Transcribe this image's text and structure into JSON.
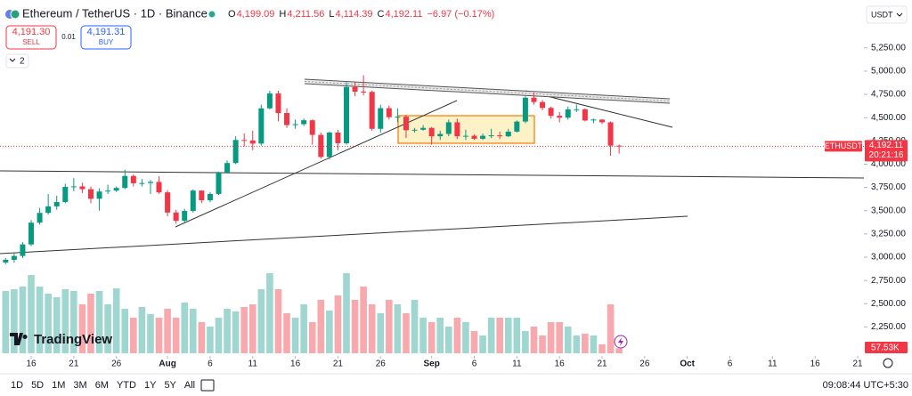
{
  "chart_data": {
    "type": "candlestick",
    "title": "Ethereum / TetherUS · 1D · Binance",
    "open": [
      2943,
      2972,
      3013,
      3137,
      3371,
      3476,
      3546,
      3593,
      3756,
      3761,
      3731,
      3628,
      3706,
      3716,
      3744,
      3873,
      3795,
      3797,
      3809,
      3697,
      3480,
      3391,
      3497,
      3716,
      3612,
      3680,
      3910,
      4012,
      4260,
      4255,
      4221,
      4600,
      4760,
      4550,
      4420,
      4430,
      4472,
      4315,
      4077,
      4340,
      4225,
      4830,
      4780,
      4777,
      4380,
      4602,
      4505,
      4510,
      4365,
      4370,
      4390,
      4300,
      4325,
      4450,
      4300,
      4305,
      4273,
      4305,
      4310,
      4300,
      4350,
      4458,
      4715,
      4668,
      4605,
      4520,
      4500,
      4590,
      4590,
      4470,
      4480,
      4450,
      4199.09
    ],
    "high": [
      2990,
      3040,
      3160,
      3400,
      3530,
      3680,
      3660,
      3790,
      3850,
      3800,
      3760,
      3740,
      3780,
      3760,
      3940,
      3890,
      3840,
      3830,
      3870,
      3720,
      3510,
      3520,
      3730,
      3720,
      3700,
      3920,
      4040,
      4300,
      4330,
      4360,
      4640,
      4790,
      4790,
      4600,
      4480,
      4490,
      4480,
      4340,
      4350,
      4370,
      4880,
      4880,
      4956,
      4790,
      4640,
      4630,
      4600,
      4530,
      4390,
      4420,
      4400,
      4360,
      4480,
      4490,
      4370,
      4320,
      4330,
      4380,
      4350,
      4380,
      4470,
      4730,
      4770,
      4690,
      4620,
      4560,
      4620,
      4640,
      4600,
      4490,
      4480,
      4460,
      4211.56
    ],
    "low": [
      2925,
      2940,
      2990,
      3120,
      3350,
      3460,
      3510,
      3580,
      3710,
      3690,
      3580,
      3500,
      3680,
      3700,
      3730,
      3760,
      3760,
      3680,
      3680,
      3440,
      3360,
      3370,
      3480,
      3580,
      3590,
      3670,
      3900,
      4000,
      4190,
      4150,
      4200,
      4590,
      4460,
      4390,
      4380,
      4410,
      4210,
      4060,
      4050,
      4150,
      4210,
      4730,
      4740,
      4360,
      4340,
      4480,
      4450,
      4280,
      4340,
      4360,
      4210,
      4260,
      4300,
      4270,
      4260,
      4260,
      4260,
      4280,
      4270,
      4290,
      4340,
      4440,
      4640,
      4580,
      4490,
      4450,
      4480,
      4560,
      4460,
      4440,
      4430,
      4090,
      4114.39
    ],
    "close": [
      2972,
      3013,
      3137,
      3371,
      3476,
      3546,
      3593,
      3756,
      3761,
      3731,
      3628,
      3706,
      3716,
      3744,
      3873,
      3795,
      3797,
      3809,
      3697,
      3480,
      3391,
      3497,
      3716,
      3612,
      3680,
      3910,
      4012,
      4260,
      4255,
      4221,
      4600,
      4760,
      4550,
      4420,
      4430,
      4472,
      4315,
      4077,
      4340,
      4225,
      4830,
      4780,
      4777,
      4380,
      4602,
      4505,
      4510,
      4365,
      4370,
      4390,
      4300,
      4325,
      4450,
      4300,
      4305,
      4273,
      4305,
      4310,
      4300,
      4350,
      4458,
      4715,
      4668,
      4605,
      4520,
      4500,
      4590,
      4590,
      4470,
      4480,
      4450,
      4199.09,
      4192.11
    ],
    "volume": [
      700000,
      720000,
      750000,
      880000,
      750000,
      670000,
      630000,
      720000,
      700000,
      550000,
      670000,
      700000,
      550000,
      730000,
      500000,
      400000,
      520000,
      440000,
      400000,
      500000,
      400000,
      570000,
      500000,
      350000,
      300000,
      400000,
      500000,
      470000,
      520000,
      550000,
      720000,
      900000,
      720000,
      450000,
      400000,
      550000,
      350000,
      600000,
      480000,
      650000,
      900000,
      600000,
      750000,
      550000,
      450000,
      600000,
      550000,
      450000,
      600000,
      400000,
      350000,
      400000,
      300000,
      400000,
      350000,
      250000,
      200000,
      400000,
      400000,
      400000,
      400000,
      250000,
      300000,
      200000,
      350000,
      350000,
      300000,
      200000,
      220000,
      200000,
      100000,
      550000,
      57530
    ],
    "up_color": "#089981",
    "down_color": "#f23645",
    "volume_up_color": "#9fd6cf",
    "volume_down_color": "#f7a9ae",
    "ylim": [
      1938,
      5765
    ],
    "yticks": [
      {
        "value": 5250,
        "label": "5,250.00"
      },
      {
        "value": 5000,
        "label": "5,000.00"
      },
      {
        "value": 4750,
        "label": "4,750.00"
      },
      {
        "value": 4500,
        "label": "4,500.00"
      },
      {
        "value": 4250,
        "label": "4,250.00"
      },
      {
        "value": 4000,
        "label": "4,000.00"
      },
      {
        "value": 3750,
        "label": "3,750.00"
      },
      {
        "value": 3500,
        "label": "3,500.00"
      },
      {
        "value": 3250,
        "label": "3,250.00"
      },
      {
        "value": 3000,
        "label": "3,000.00"
      },
      {
        "value": 2750,
        "label": "2,750.00"
      },
      {
        "value": 2500,
        "label": "2,500.00"
      },
      {
        "value": 2250,
        "label": "2,250.00"
      }
    ],
    "xlim": [
      -0.66,
      100.73
    ],
    "xticks": [
      {
        "value": 3,
        "label": "16"
      },
      {
        "value": 8,
        "label": "21"
      },
      {
        "value": 13,
        "label": "26"
      },
      {
        "value": 19,
        "label": "Aug"
      },
      {
        "value": 24,
        "label": "6"
      },
      {
        "value": 29,
        "label": "11"
      },
      {
        "value": 34,
        "label": "16"
      },
      {
        "value": 39,
        "label": "21"
      },
      {
        "value": 44,
        "label": "26"
      },
      {
        "value": 50,
        "label": "Sep"
      },
      {
        "value": 55,
        "label": "6"
      },
      {
        "value": 60,
        "label": "11"
      },
      {
        "value": 65,
        "label": "16"
      },
      {
        "value": 70,
        "label": "21"
      },
      {
        "value": 75,
        "label": "26"
      },
      {
        "value": 80,
        "label": "Oct"
      },
      {
        "value": 85,
        "label": "6"
      },
      {
        "value": 90,
        "label": "11"
      },
      {
        "value": 95,
        "label": "16"
      },
      {
        "value": 100,
        "label": "21"
      }
    ],
    "symbol_label": "ETHUSDT",
    "last_price_label": "4,192.11",
    "countdown": "20:21:16",
    "volume_label": "57.53K",
    "currency": "USDT"
  },
  "header": {
    "ohlc": [
      {
        "key": "O",
        "value": "4,199.09"
      },
      {
        "key": "H",
        "value": "4,211.56"
      },
      {
        "key": "L",
        "value": "4,114.39"
      },
      {
        "key": "C",
        "value": "4,192.11"
      }
    ],
    "change": "−6.97 (−0.17%)"
  },
  "trade": {
    "sell_price": "4,191.30",
    "sell": "SELL",
    "spread": "0.01",
    "buy_price": "4,191.31",
    "buy": "BUY"
  },
  "indicators_count": "2",
  "brand": "TradingView",
  "timeframes": [
    "1D",
    "5D",
    "1M",
    "3M",
    "6M",
    "YTD",
    "1Y",
    "5Y",
    "All"
  ],
  "clock": "09:08:44 UTC+5:30"
}
